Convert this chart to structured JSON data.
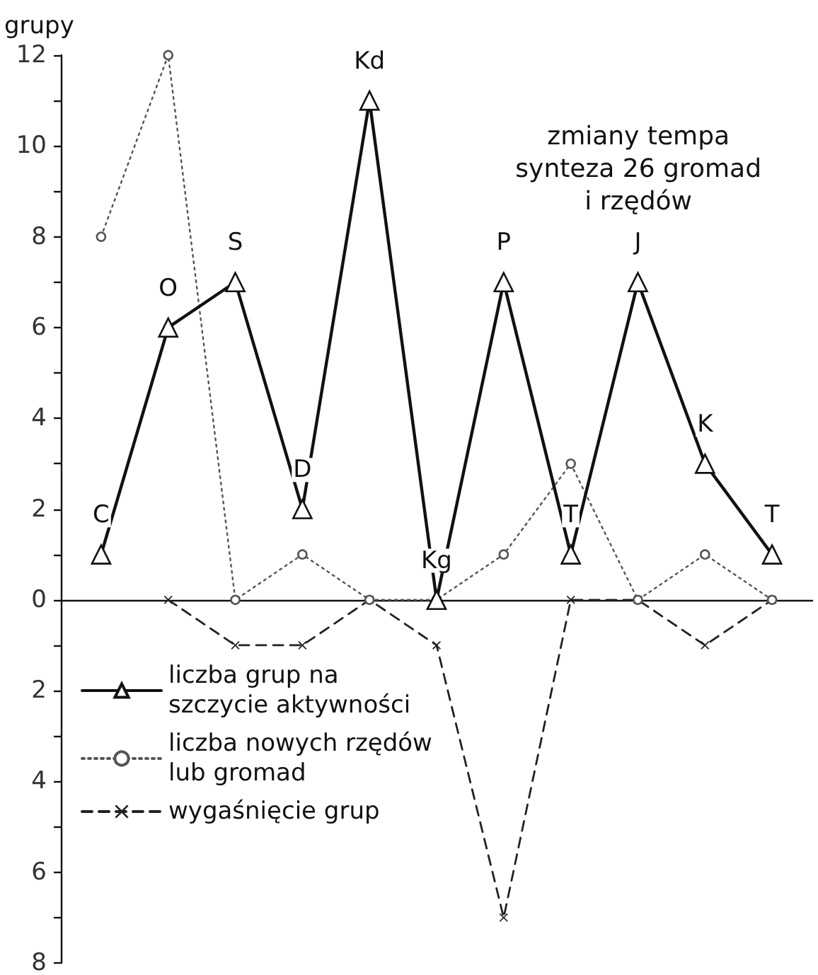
{
  "chart_data": {
    "type": "line",
    "ylabel": "grupy",
    "categories": [
      "C",
      "O",
      "S",
      "D",
      "Kd",
      "Kg",
      "P",
      "T",
      "J",
      "K",
      "T"
    ],
    "ylim": [
      -8,
      12
    ],
    "yticks": [
      {
        "value": -8,
        "label": "8"
      },
      {
        "value": -7,
        "label": null
      },
      {
        "value": -6,
        "label": "6"
      },
      {
        "value": -5,
        "label": null
      },
      {
        "value": -4,
        "label": "4"
      },
      {
        "value": -3,
        "label": null
      },
      {
        "value": -2,
        "label": "2"
      },
      {
        "value": -1,
        "label": null
      },
      0,
      {
        "value": 1,
        "label": null
      },
      2,
      {
        "value": 3,
        "label": null
      },
      4,
      {
        "value": 5,
        "label": null
      },
      6,
      {
        "value": 7,
        "label": null
      },
      8,
      {
        "value": 9,
        "label": null
      },
      10,
      {
        "value": 11,
        "label": null
      },
      12
    ],
    "tick_labels": "y",
    "legend": "bottom left",
    "series": [
      {
        "name": "liczba grup na\nszczycie aktywności",
        "color": "#111111",
        "marker": "triangle",
        "line_style": "solid",
        "values": [
          1,
          6,
          7,
          2,
          11,
          0,
          7,
          1,
          7,
          3,
          1
        ]
      },
      {
        "name": "liczba nowych rzędów\nlub gromad",
        "color": "#555555",
        "marker": "circle",
        "line_style": "dotted",
        "values": [
          8,
          12,
          0,
          1,
          0,
          0,
          1,
          3,
          0,
          1,
          0
        ]
      },
      {
        "name": "wygaśnięcie grup",
        "color": "#222222",
        "marker": "cross",
        "line_style": "dashed",
        "values": [
          null,
          0,
          -1,
          -1,
          0,
          -1,
          -7,
          0,
          0,
          -1,
          0
        ]
      }
    ],
    "annotations": [
      "zmiany tempa\nsynteza 26 gromad\ni rzędów"
    ]
  }
}
